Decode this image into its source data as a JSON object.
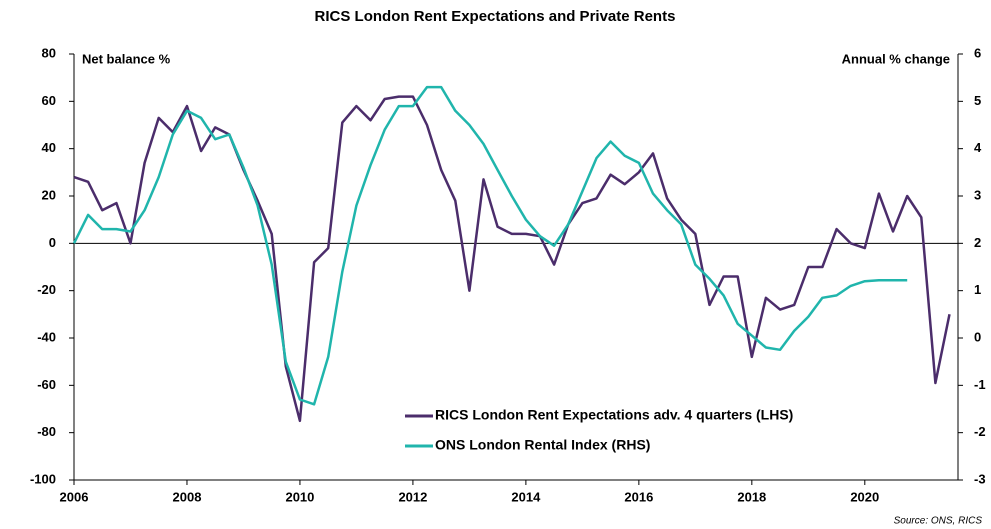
{
  "chart_data": {
    "type": "line",
    "title": "RICS London Rent Expectations and Private Rents",
    "y_label": "Net balance %",
    "y2_label": "Annual % change",
    "source": "Source: ONS, RICS",
    "xlim": [
      2006,
      2021.65
    ],
    "xticks": [
      2006,
      2008,
      2010,
      2012,
      2014,
      2016,
      2018,
      2020
    ],
    "ylim": [
      -100,
      80
    ],
    "yticks": [
      -100,
      -80,
      -60,
      -40,
      -20,
      0,
      20,
      40,
      60,
      80
    ],
    "y2lim": [
      -3,
      6
    ],
    "y2ticks": [
      -3,
      -2,
      -1,
      0,
      1,
      2,
      3,
      4,
      5,
      6
    ],
    "legend": "lower right",
    "series": [
      {
        "name": "RICS London Rent Expectations adv. 4 quarters (LHS)",
        "color": "#4b2d6b",
        "axis": "y",
        "x": [
          2006,
          2006.25,
          2006.5,
          2006.75,
          2007,
          2007.25,
          2007.5,
          2007.75,
          2008,
          2008.25,
          2008.5,
          2008.75,
          2009,
          2009.25,
          2009.5,
          2009.75,
          2010,
          2010.25,
          2010.5,
          2010.75,
          2011,
          2011.25,
          2011.5,
          2011.75,
          2012,
          2012.25,
          2012.5,
          2012.75,
          2013,
          2013.25,
          2013.5,
          2013.75,
          2014,
          2014.25,
          2014.5,
          2014.75,
          2015,
          2015.25,
          2015.5,
          2015.75,
          2016,
          2016.25,
          2016.5,
          2016.75,
          2017,
          2017.25,
          2017.5,
          2017.75,
          2018,
          2018.25,
          2018.5,
          2018.75,
          2019,
          2019.25,
          2019.5,
          2019.75,
          2020,
          2020.25,
          2020.5,
          2020.75,
          2021,
          2021.25,
          2021.5
        ],
        "values": [
          28,
          26,
          14,
          17,
          0,
          34,
          53,
          47,
          58,
          39,
          49,
          46,
          31,
          18,
          4,
          -52,
          -75,
          -8,
          -2,
          51,
          58,
          52,
          61,
          62,
          62,
          50,
          31,
          18,
          -20,
          27,
          7,
          4,
          4,
          3,
          -9,
          8,
          17,
          19,
          29,
          25,
          30,
          38,
          19,
          10,
          4,
          -26,
          -14,
          -14,
          -48,
          -23,
          -28,
          -26,
          -10,
          -10,
          6,
          0,
          -2,
          21,
          5,
          20,
          11,
          -59,
          -30
        ]
      },
      {
        "name": "ONS London Rental Index (RHS)",
        "color": "#20b5ac",
        "axis": "y2",
        "x": [
          2006,
          2006.25,
          2006.5,
          2006.75,
          2007,
          2007.25,
          2007.5,
          2007.75,
          2008,
          2008.25,
          2008.5,
          2008.75,
          2009,
          2009.25,
          2009.5,
          2009.75,
          2010,
          2010.25,
          2010.5,
          2010.75,
          2011,
          2011.25,
          2011.5,
          2011.75,
          2012,
          2012.25,
          2012.5,
          2012.75,
          2013,
          2013.25,
          2013.5,
          2013.75,
          2014,
          2014.25,
          2014.5,
          2014.75,
          2015,
          2015.25,
          2015.5,
          2015.75,
          2016,
          2016.25,
          2016.5,
          2016.75,
          2017,
          2017.25,
          2017.5,
          2017.75,
          2018,
          2018.25,
          2018.5,
          2018.75,
          2019,
          2019.25,
          2019.5,
          2019.75,
          2020,
          2020.25,
          2020.5,
          2020.75
        ],
        "values": [
          2.0,
          2.6,
          2.3,
          2.3,
          2.25,
          2.7,
          3.4,
          4.3,
          4.8,
          4.65,
          4.2,
          4.3,
          3.6,
          2.8,
          1.55,
          -0.5,
          -1.3,
          -1.4,
          -0.4,
          1.4,
          2.8,
          3.65,
          4.4,
          4.9,
          4.9,
          5.3,
          5.3,
          4.8,
          4.5,
          4.1,
          3.55,
          3.0,
          2.5,
          2.15,
          1.95,
          2.4,
          3.1,
          3.8,
          4.15,
          3.85,
          3.7,
          3.05,
          2.7,
          2.4,
          1.55,
          1.25,
          0.9,
          0.3,
          0.05,
          -0.2,
          -0.25,
          0.15,
          0.45,
          0.85,
          0.9,
          1.1,
          1.2,
          1.22,
          1.22,
          1.22
        ]
      }
    ]
  }
}
